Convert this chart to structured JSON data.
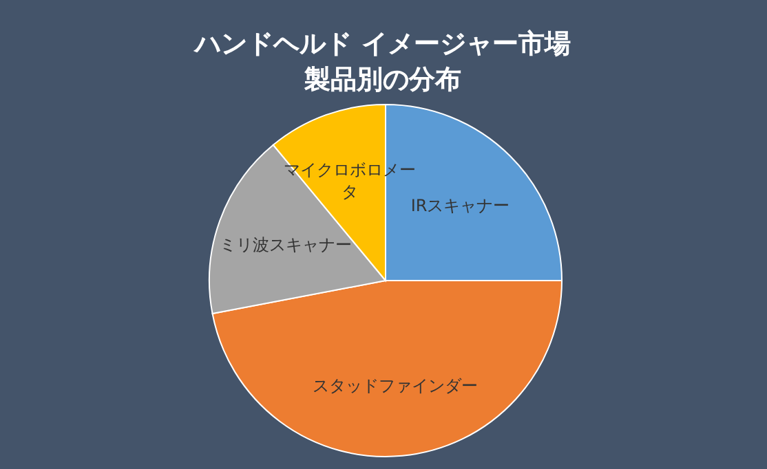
{
  "chart_data": {
    "type": "pie",
    "title": "ハンドヘルド イメージャー市場",
    "subtitle": "製品別の分布",
    "categories": [
      "IRスキャナー",
      "スタッドファインダー",
      "ミリ波スキャナー",
      "マイクロボロメータ"
    ],
    "values": [
      25,
      47,
      17,
      11
    ],
    "colors": [
      "#5b9bd5",
      "#ed7d31",
      "#a5a5a5",
      "#ffc000"
    ]
  }
}
